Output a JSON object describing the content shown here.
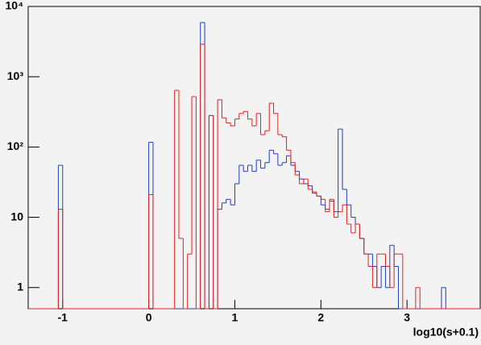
{
  "chart_data": {
    "type": "histogram",
    "log_y": true,
    "x_label": "log10(s+0.1)",
    "bins": [
      -1.4,
      -1.35,
      -1.3,
      -1.25,
      -1.2,
      -1.15,
      -1.1,
      -1.05,
      -1.0,
      -0.95,
      -0.9,
      -0.85,
      -0.8,
      -0.75,
      -0.7,
      -0.65,
      -0.6,
      -0.55,
      -0.5,
      -0.45,
      -0.4,
      -0.35,
      -0.3,
      -0.25,
      -0.2,
      -0.15,
      -0.1,
      -0.05,
      0,
      0.05,
      0.1,
      0.15,
      0.2,
      0.25,
      0.3,
      0.35,
      0.4,
      0.45,
      0.5,
      0.55,
      0.6,
      0.65,
      0.7,
      0.75,
      0.8,
      0.85,
      0.9,
      0.95,
      1.0,
      1.05,
      1.1,
      1.15,
      1.2,
      1.25,
      1.3,
      1.35,
      1.4,
      1.45,
      1.5,
      1.55,
      1.6,
      1.65,
      1.7,
      1.75,
      1.8,
      1.85,
      1.9,
      1.95,
      2.0,
      2.05,
      2.1,
      2.15,
      2.2,
      2.25,
      2.3,
      2.35,
      2.4,
      2.45,
      2.5,
      2.55,
      2.6,
      2.65,
      2.7,
      2.75,
      2.8,
      2.85,
      2.9,
      2.95,
      3.0,
      3.05,
      3.1,
      3.15,
      3.2,
      3.25,
      3.3,
      3.35,
      3.4,
      3.45,
      3.5,
      3.55,
      3.6,
      3.65,
      3.7,
      3.75,
      3.8,
      3.85
    ],
    "series": [
      {
        "color": "#1f3fbf",
        "values": [
          0,
          0,
          0,
          0,
          0,
          0,
          0,
          55,
          0,
          0,
          0,
          0,
          0,
          0,
          0,
          0,
          0,
          0,
          0,
          0,
          0,
          0,
          0,
          0,
          0,
          0,
          0,
          0,
          117,
          0,
          0,
          0,
          0,
          0,
          0,
          0,
          0,
          0,
          0,
          0,
          5900,
          0,
          280,
          0,
          13,
          16,
          18,
          15,
          30,
          55,
          45,
          55,
          45,
          65,
          50,
          60,
          90,
          80,
          55,
          60,
          75,
          55,
          45,
          35,
          30,
          28,
          22,
          20,
          15,
          13,
          17,
          12,
          180,
          25,
          15,
          10,
          8,
          5,
          3,
          3,
          2,
          1,
          2,
          1,
          4,
          2,
          0,
          0,
          0,
          0,
          0,
          0,
          0,
          0,
          0,
          0,
          1,
          0,
          0,
          0,
          0,
          0,
          0,
          0,
          0
        ]
      },
      {
        "color": "#e02020",
        "values": [
          0,
          0,
          0,
          0,
          0,
          0,
          0,
          13,
          0,
          0,
          0,
          0,
          0,
          0,
          0,
          0,
          0,
          0,
          0,
          0,
          0,
          0,
          0,
          0,
          0,
          0,
          0,
          0,
          21,
          0,
          0,
          0,
          0,
          0,
          640,
          5,
          0,
          3,
          520,
          0,
          2900,
          0,
          280,
          0,
          470,
          260,
          220,
          200,
          250,
          300,
          320,
          250,
          200,
          300,
          150,
          170,
          420,
          300,
          150,
          140,
          90,
          60,
          40,
          30,
          35,
          25,
          23,
          20,
          18,
          12,
          18,
          10,
          12,
          15,
          8,
          6,
          8,
          5,
          3,
          2,
          1,
          3,
          3,
          2,
          1,
          3,
          3,
          0,
          0,
          0,
          1,
          0,
          0,
          0,
          0,
          0,
          0,
          0,
          0,
          0,
          0,
          0,
          0,
          0,
          0
        ]
      }
    ],
    "xlim": [
      -1.4,
      3.85
    ],
    "xticks": [
      -1,
      0,
      1,
      2,
      3
    ],
    "ylim": [
      0.5,
      10000
    ],
    "yticks": [
      1,
      10,
      {
        "value": 100,
        "label": "10²"
      },
      {
        "value": 1000,
        "label": "10³"
      },
      {
        "value": 10000,
        "label": "10⁴"
      }
    ]
  }
}
